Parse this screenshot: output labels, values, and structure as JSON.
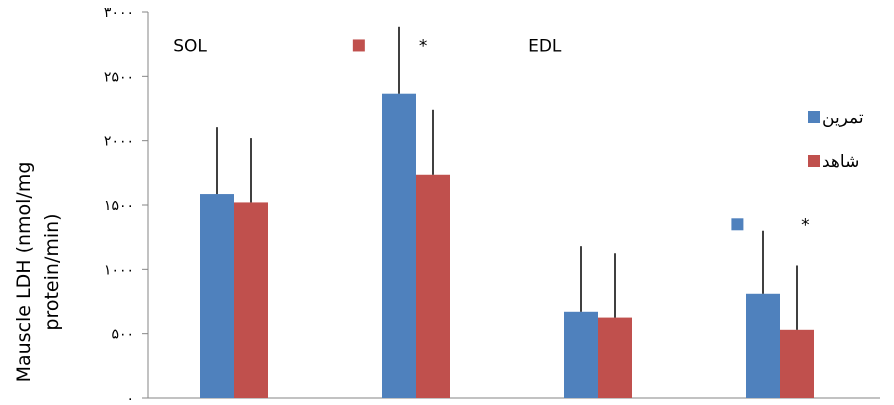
{
  "chart_data": {
    "type": "bar",
    "ylabel_lines": [
      "Mauscle LDH (nmol/mg",
      "protein/min)"
    ],
    "ylim": [
      0,
      3000
    ],
    "yticks": [
      0,
      500,
      1000,
      1500,
      2000,
      2500,
      3000
    ],
    "ytick_labels": [
      "۰",
      "۵۰۰",
      "۱۰۰۰",
      "۱۵۰۰",
      "۲۰۰۰",
      "۲۵۰۰",
      "۳۰۰۰"
    ],
    "grid": false,
    "legend_position": "right",
    "categories": [
      "",
      "",
      "",
      ""
    ],
    "series": [
      {
        "name": "تمرین",
        "color": "#4F81BD",
        "values": [
          1585,
          2365,
          670,
          810
        ],
        "errors": [
          520,
          520,
          510,
          490
        ]
      },
      {
        "name": "شاهد",
        "color": "#C0504D",
        "values": [
          1520,
          1735,
          625,
          530
        ],
        "errors": [
          500,
          505,
          500,
          500
        ]
      }
    ],
    "annotations": [
      {
        "text": "SOL",
        "x": 0.1,
        "y": 2740
      },
      {
        "text": "EDL",
        "x": 2.05,
        "y": 2740
      },
      {
        "text": "*",
        "x": 1.45,
        "y": 2740
      },
      {
        "text": "*",
        "x": 3.55,
        "y": 1350
      }
    ],
    "marker_annotations": [
      {
        "series_index": 1,
        "x": 1.12,
        "y": 2740
      },
      {
        "series_index": 0,
        "x": 3.2,
        "y": 1350
      }
    ]
  }
}
